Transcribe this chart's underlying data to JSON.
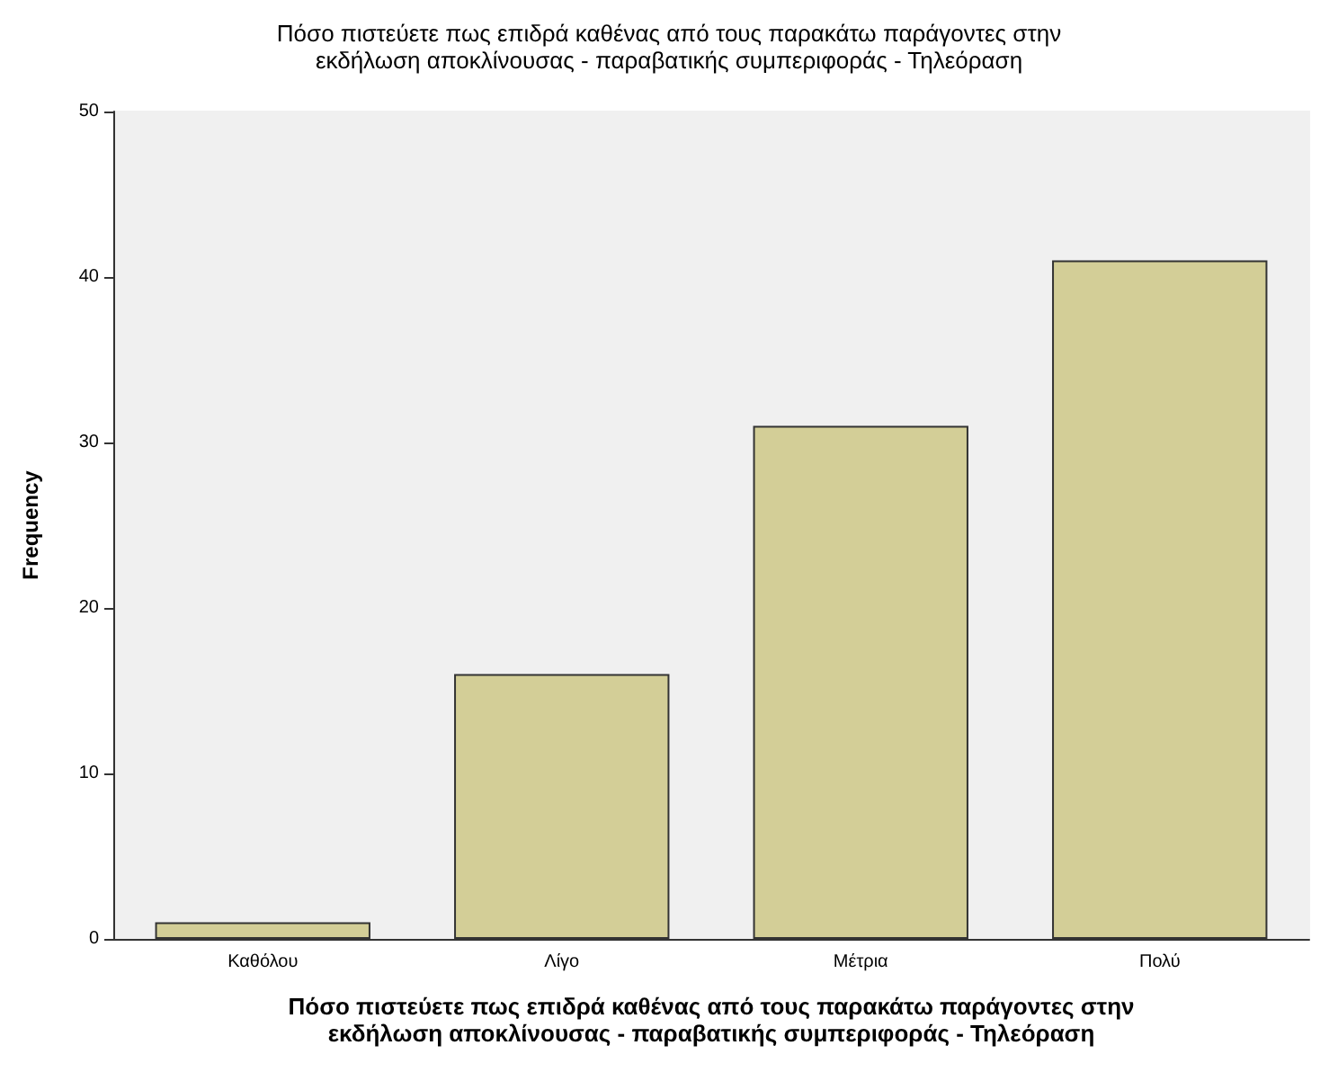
{
  "chart_data": {
    "type": "bar",
    "title": "Πόσο πιστεύετε πως επιδρά καθένας από τους παρακάτω παράγοντες στην\nεκδήλωση αποκλίνουσας - παραβατικής συμπεριφοράς - Τηλεόραση",
    "xlabel": "Πόσο πιστεύετε πως επιδρά καθένας από τους παρακάτω παράγοντες στην\nεκδήλωση αποκλίνουσας - παραβατικής συμπεριφοράς - Τηλεόραση",
    "ylabel": "Frequency",
    "categories": [
      "Καθόλου",
      "Λίγο",
      "Μέτρια",
      "Πολύ"
    ],
    "values": [
      1,
      16,
      31,
      41
    ],
    "color": "#d3ce97",
    "ylim": [
      0,
      50
    ],
    "yticks": [
      0,
      10,
      20,
      30,
      40,
      50
    ],
    "grid": false
  }
}
